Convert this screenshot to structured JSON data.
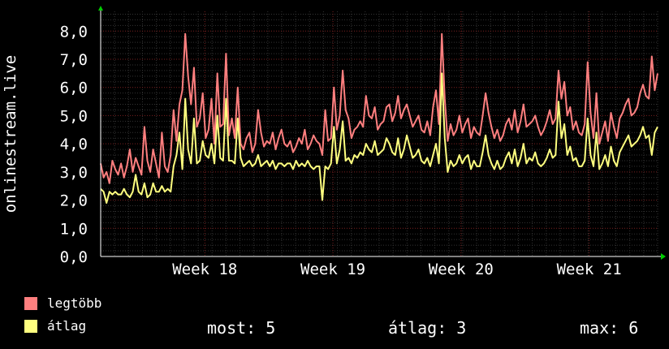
{
  "chart_data": {
    "type": "line",
    "ylabel": "onlinestream.live",
    "yticks": [
      "0,0",
      "1,0",
      "2,0",
      "3,0",
      "4,0",
      "5,0",
      "6,0",
      "7,0",
      "8,0"
    ],
    "ylim": [
      0,
      8.7
    ],
    "xticks": [
      "Week 18",
      "Week 19",
      "Week 20",
      "Week 21"
    ],
    "xtick_positions": [
      0.187,
      0.417,
      0.647,
      0.877
    ],
    "grid": true,
    "series": [
      {
        "name": "legtöbb",
        "color": "#ff7f7f",
        "values": [
          3.3,
          2.8,
          3.0,
          2.6,
          3.4,
          3.1,
          2.9,
          3.3,
          2.8,
          3.2,
          3.8,
          3.0,
          3.5,
          3.2,
          2.9,
          4.6,
          3.4,
          3.0,
          3.8,
          3.3,
          2.8,
          4.4,
          3.2,
          3.0,
          3.6,
          5.2,
          4.1,
          5.4,
          5.9,
          7.9,
          6.4,
          5.4,
          6.7,
          4.6,
          4.9,
          5.8,
          4.2,
          4.5,
          5.6,
          4.0,
          6.5,
          4.6,
          4.7,
          7.2,
          4.3,
          4.9,
          4.2,
          6.0,
          4.0,
          3.8,
          4.2,
          4.4,
          3.7,
          4.0,
          5.2,
          4.4,
          3.9,
          4.1,
          4.0,
          4.4,
          3.8,
          4.2,
          4.5,
          4.0,
          3.9,
          4.1,
          3.7,
          3.9,
          4.2,
          4.0,
          4.5,
          3.8,
          4.0,
          4.3,
          4.1,
          4.0,
          3.6,
          5.2,
          4.1,
          4.2,
          6.0,
          4.5,
          5.0,
          6.6,
          5.2,
          4.9,
          4.2,
          4.5,
          4.6,
          4.8,
          4.6,
          5.7,
          5.0,
          4.9,
          5.3,
          4.5,
          4.7,
          4.8,
          5.3,
          5.4,
          4.8,
          5.1,
          5.7,
          4.9,
          5.2,
          5.4,
          5.0,
          4.6,
          4.8,
          5.0,
          4.5,
          4.4,
          4.8,
          4.3,
          5.3,
          5.9,
          4.7,
          7.9,
          5.6,
          4.1,
          4.7,
          4.3,
          4.5,
          5.0,
          4.4,
          4.7,
          4.9,
          4.2,
          4.6,
          4.4,
          4.3,
          5.0,
          5.8,
          5.1,
          4.6,
          4.2,
          4.5,
          4.1,
          4.3,
          4.7,
          4.9,
          4.5,
          5.2,
          4.4,
          4.8,
          5.4,
          4.6,
          4.7,
          4.8,
          5.0,
          4.6,
          4.3,
          4.5,
          4.8,
          5.2,
          4.7,
          4.9,
          6.6,
          5.6,
          6.2,
          5.0,
          5.3,
          4.5,
          4.8,
          4.4,
          4.3,
          4.7,
          6.9,
          5.1,
          4.2,
          5.8,
          4.0,
          4.4,
          4.8,
          4.1,
          5.1,
          4.6,
          4.2,
          4.9,
          5.1,
          5.4,
          5.6,
          5.0,
          5.1,
          5.3,
          5.8,
          6.1,
          5.7,
          5.6,
          7.1,
          5.9,
          6.5
        ]
      },
      {
        "name": "átlag",
        "color": "#ffff7f",
        "values": [
          2.4,
          2.3,
          1.9,
          2.3,
          2.2,
          2.3,
          2.2,
          2.2,
          2.4,
          2.2,
          2.1,
          2.3,
          2.9,
          2.3,
          2.2,
          2.6,
          2.1,
          2.2,
          2.6,
          2.3,
          2.3,
          2.5,
          2.3,
          2.4,
          2.3,
          3.2,
          3.6,
          4.4,
          3.1,
          5.6,
          3.8,
          3.3,
          4.9,
          3.3,
          3.4,
          4.1,
          3.6,
          3.5,
          4.0,
          3.3,
          5.0,
          3.5,
          3.4,
          5.6,
          3.4,
          3.4,
          3.3,
          4.9,
          3.5,
          3.2,
          3.3,
          3.4,
          3.2,
          3.3,
          3.6,
          3.2,
          3.3,
          3.4,
          3.2,
          3.4,
          3.1,
          3.3,
          3.3,
          3.2,
          3.3,
          3.3,
          3.1,
          3.4,
          3.2,
          3.3,
          3.2,
          3.4,
          3.2,
          3.1,
          3.2,
          3.2,
          2.0,
          3.2,
          3.1,
          3.3,
          4.6,
          3.3,
          3.8,
          4.8,
          3.4,
          3.5,
          3.3,
          3.6,
          3.5,
          3.7,
          3.6,
          4.0,
          3.8,
          3.7,
          4.1,
          3.6,
          3.7,
          3.8,
          4.2,
          4.0,
          3.7,
          3.6,
          4.2,
          3.5,
          3.8,
          4.3,
          3.9,
          3.5,
          3.6,
          3.8,
          3.4,
          3.3,
          3.5,
          3.2,
          3.6,
          4.0,
          3.3,
          6.5,
          4.2,
          3.0,
          3.4,
          3.2,
          3.3,
          3.6,
          3.3,
          3.5,
          3.6,
          3.1,
          3.4,
          3.2,
          3.2,
          3.7,
          4.3,
          3.6,
          3.3,
          3.1,
          3.4,
          3.1,
          3.2,
          3.5,
          3.7,
          3.3,
          3.8,
          3.2,
          3.5,
          4.0,
          3.3,
          3.5,
          3.4,
          3.7,
          3.3,
          3.2,
          3.3,
          3.5,
          3.8,
          3.5,
          3.6,
          5.5,
          4.2,
          4.7,
          3.6,
          3.9,
          3.4,
          3.5,
          3.2,
          3.2,
          3.4,
          4.9,
          3.6,
          3.2,
          4.4,
          3.1,
          3.3,
          3.6,
          3.2,
          3.9,
          3.4,
          3.2,
          3.7,
          3.9,
          4.1,
          4.3,
          3.9,
          4.0,
          4.1,
          4.3,
          4.6,
          4.2,
          4.3,
          3.6,
          4.4,
          4.6
        ]
      }
    ]
  },
  "legend": [
    {
      "label": "legtöbb",
      "color": "#ff7f7f"
    },
    {
      "label": "átlag",
      "color": "#ffff7f"
    }
  ],
  "stats": {
    "most": "most: 5",
    "atlag": "átlag: 3",
    "max": "max: 6"
  }
}
